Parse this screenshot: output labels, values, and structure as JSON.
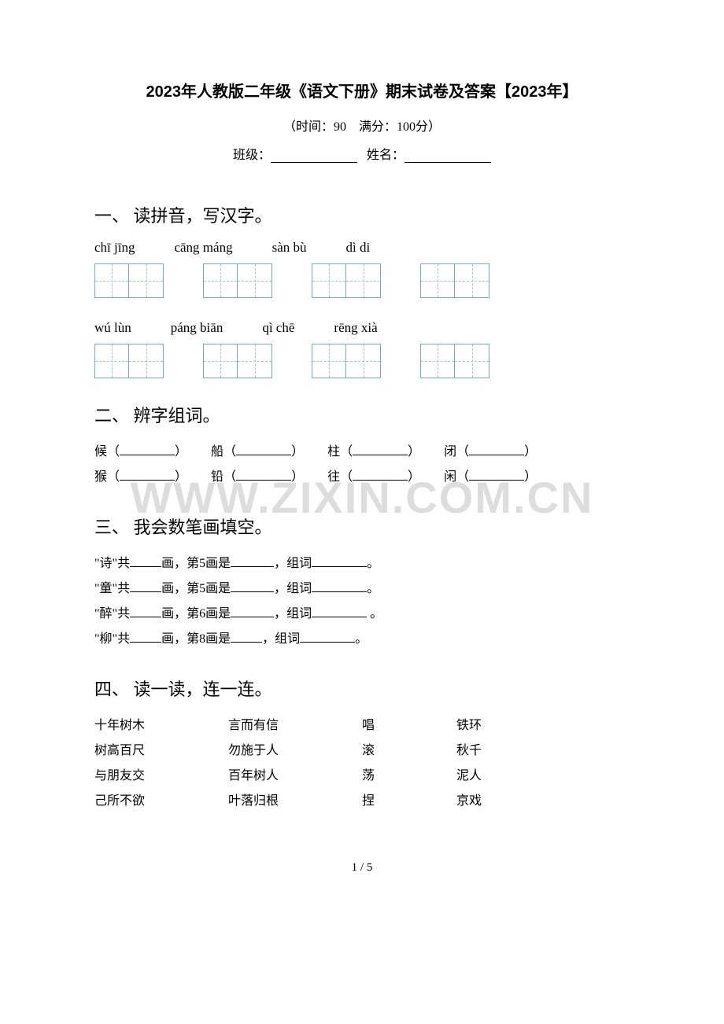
{
  "header": {
    "title": "2023年人教版二年级《语文下册》期末试卷及答案【2023年】",
    "time_score": "（时间：90　满分：100分）",
    "class_label": "班级：",
    "name_label": "姓名："
  },
  "watermark": "WWW.ZIXIN.COM.CN",
  "section1": {
    "heading": "一、 读拼音，写汉字。",
    "row1": [
      "chī  jīng",
      "cāng máng",
      "sàn  bù",
      "dì  di"
    ],
    "row2": [
      "wú  lùn",
      "páng biān",
      "qì chē",
      "rēng xià"
    ]
  },
  "section2": {
    "heading": "二、 辨字组词。",
    "pairs": [
      [
        "候",
        "船",
        "柱",
        "闭"
      ],
      [
        "猴",
        "铅",
        "往",
        "闲"
      ]
    ]
  },
  "section3": {
    "heading": "三、 我会数笔画填空。",
    "lines": [
      {
        "char": "诗",
        "stroke": "第5画是",
        "end": "。"
      },
      {
        "char": "童",
        "stroke": "第5画是",
        "end": "。"
      },
      {
        "char": "醉",
        "stroke": "第6画是",
        "end": " 。"
      },
      {
        "char": "柳",
        "stroke": "第8画是",
        "end": "。"
      }
    ],
    "tpl_open": "\"",
    "tpl_gong": "\"共",
    "tpl_hua": "画，",
    "tpl_zuci": "，组词"
  },
  "section4": {
    "heading": "四、 读一读，连一连。",
    "rows": [
      [
        "十年树木",
        "言而有信",
        "唱",
        "铁环"
      ],
      [
        "树高百尺",
        "勿施于人",
        "滚",
        "秋千"
      ],
      [
        "与朋友交",
        "百年树人",
        "荡",
        "泥人"
      ],
      [
        "己所不欲",
        "叶落归根",
        "捏",
        "京戏"
      ]
    ]
  },
  "page_num": "1 / 5"
}
